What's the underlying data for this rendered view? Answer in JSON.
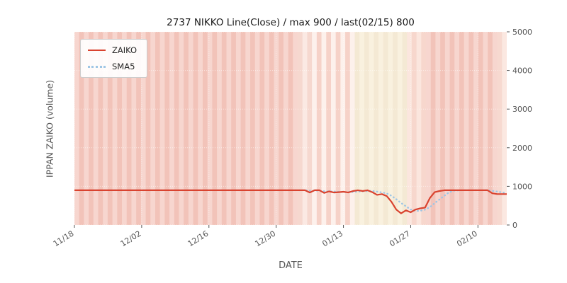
{
  "chart_data": {
    "type": "line",
    "title": "2737 NIKKO Line(Close) / max 900 / last(02/15) 800",
    "xlabel": "DATE",
    "ylabel": "IPPAN ZAIKO (volume)",
    "ylim": [
      0,
      5000
    ],
    "y_ticks": [
      0,
      1000,
      2000,
      3000,
      4000,
      5000
    ],
    "x_ticks": [
      {
        "day": 0,
        "label": "11/18"
      },
      {
        "day": 14,
        "label": "12/02"
      },
      {
        "day": 28,
        "label": "12/16"
      },
      {
        "day": 42,
        "label": "12/30"
      },
      {
        "day": 56,
        "label": "01/13"
      },
      {
        "day": 70,
        "label": "01/27"
      },
      {
        "day": 84,
        "label": "02/10"
      }
    ],
    "start_date_label": "11/18",
    "last_date_label": "02/15",
    "max_value": 900,
    "last_value": 800,
    "legend": [
      {
        "name": "ZAIKO",
        "color": "#d9432f",
        "style": "solid"
      },
      {
        "name": "SMA5",
        "color": "#9fc6e5",
        "style": "dotted"
      }
    ],
    "series": [
      {
        "name": "ZAIKO",
        "values": [
          900,
          900,
          900,
          900,
          900,
          900,
          900,
          900,
          900,
          900,
          900,
          900,
          900,
          900,
          900,
          900,
          900,
          900,
          900,
          900,
          900,
          900,
          900,
          900,
          900,
          900,
          900,
          900,
          900,
          900,
          900,
          900,
          900,
          900,
          900,
          900,
          900,
          900,
          900,
          900,
          900,
          900,
          900,
          900,
          900,
          900,
          900,
          900,
          900,
          840,
          900,
          900,
          830,
          870,
          840,
          850,
          860,
          840,
          880,
          900,
          880,
          900,
          850,
          780,
          800,
          750,
          600,
          400,
          300,
          380,
          330,
          400,
          430,
          450,
          700,
          850,
          880,
          900,
          900,
          900,
          900,
          900,
          900,
          900,
          900,
          900,
          900,
          820,
          800,
          800,
          800
        ]
      }
    ],
    "sma5": {
      "name": "SMA5",
      "window": 5,
      "derived_from": "ZAIKO"
    },
    "background_bands": {
      "default": [
        "#f7d6cf",
        "#f2c3b9"
      ],
      "regions": [
        {
          "from": 47,
          "to": 50,
          "colors": [
            "#fbe9e3",
            "#f6d8cf"
          ]
        },
        {
          "from": 50,
          "to": 59,
          "colors": [
            "#fdf1ec",
            "#f6d2c8"
          ]
        },
        {
          "from": 59,
          "to": 70,
          "colors": [
            "#f9f1df",
            "#f4e9d4"
          ]
        },
        {
          "from": 70,
          "to": 74,
          "colors": [
            "#fbe6de",
            "#f7d7cd"
          ]
        },
        {
          "from": 89,
          "to": 91,
          "colors": [
            "#fbe8e1",
            "#f7d9d0"
          ]
        }
      ]
    },
    "axis_color": "#555555",
    "grid_color": "#ffffff"
  }
}
